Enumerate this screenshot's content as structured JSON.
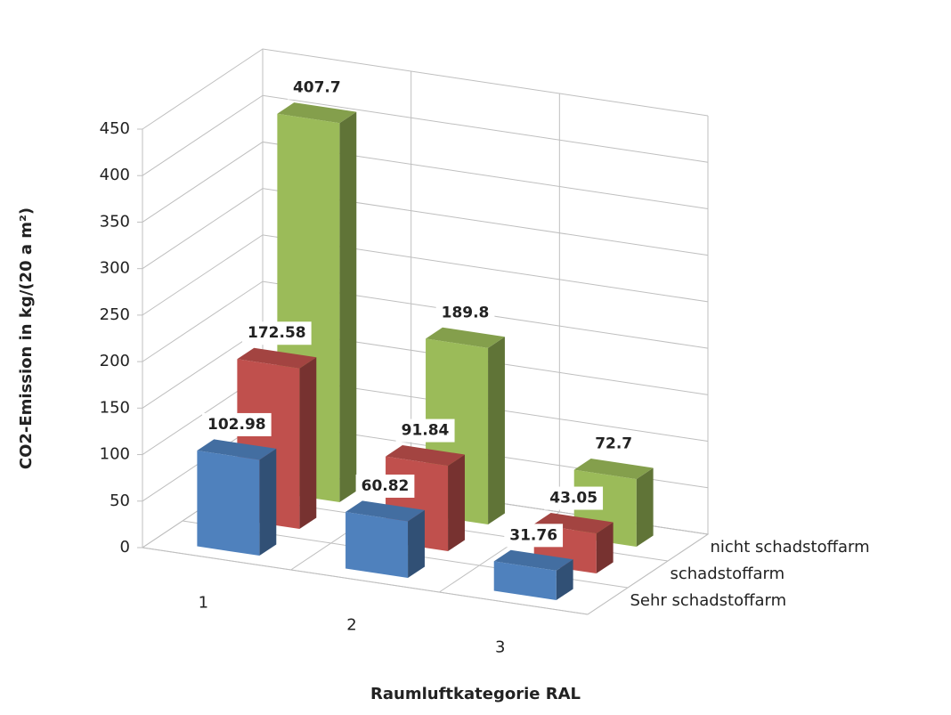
{
  "chart_data": {
    "type": "bar",
    "y_axis_label": "CO2-Emission in kg/(20 a m²)",
    "x_axis_label": "Raumluftkategorie RAL",
    "categories": [
      "1",
      "2",
      "3"
    ],
    "series": [
      {
        "name": "Sehr schadstoffarm",
        "color": "#4f81bd",
        "values": [
          102.98,
          60.82,
          31.76
        ]
      },
      {
        "name": "schadstoffarm",
        "color": "#c0504d",
        "values": [
          172.58,
          91.84,
          43.05
        ]
      },
      {
        "name": "nicht schadstoffarm",
        "color": "#9bbb59",
        "values": [
          407.7,
          189.8,
          72.7
        ]
      }
    ],
    "ylim": [
      0,
      450
    ],
    "yticks": [
      0,
      50,
      100,
      150,
      200,
      250,
      300,
      350,
      400,
      450
    ],
    "grid": true
  }
}
